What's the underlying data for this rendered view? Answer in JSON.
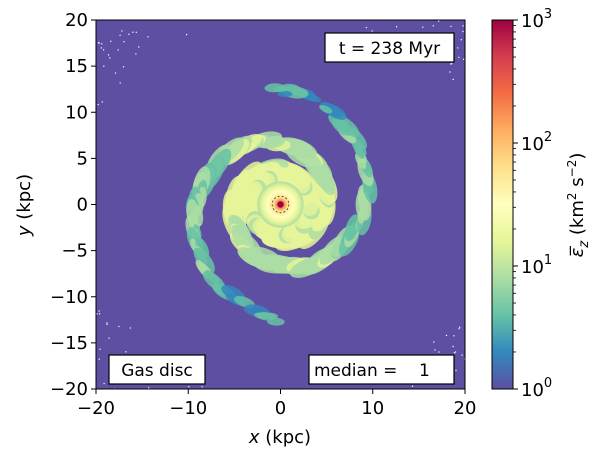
{
  "chart_data": {
    "type": "heatmap",
    "title": "",
    "xlabel": "x (kpc)",
    "ylabel": "y (kpc)",
    "xlim": [
      -20,
      20
    ],
    "ylim": [
      -20,
      20
    ],
    "x_ticks": [
      "−20",
      "−10",
      "0",
      "10",
      "20"
    ],
    "y_ticks": [
      "−20",
      "−15",
      "−10",
      "−5",
      "0",
      "5",
      "10",
      "15",
      "20"
    ],
    "x_tick_values": [
      -20,
      -10,
      0,
      10,
      20
    ],
    "y_tick_values": [
      -20,
      -15,
      -10,
      -5,
      0,
      5,
      10,
      15,
      20
    ],
    "colorbar": {
      "label": "ε̅_z (km² s⁻²)",
      "scale": "log",
      "range": [
        1,
        1000
      ],
      "ticks": [
        {
          "value": 1,
          "base": "10",
          "exp": "0"
        },
        {
          "value": 10,
          "base": "10",
          "exp": "1"
        },
        {
          "value": 100,
          "base": "10",
          "exp": "2"
        },
        {
          "value": 1000,
          "base": "10",
          "exp": "3"
        }
      ],
      "colormap": "Spectral_r",
      "colormap_stops": [
        "#5e4fa2",
        "#3288bd",
        "#66c2a5",
        "#abdda4",
        "#e6f598",
        "#ffffbf",
        "#fee08b",
        "#fdae61",
        "#f46d43",
        "#d53e4f",
        "#9e0142"
      ]
    },
    "annotations": {
      "time": "t = 238 Myr",
      "component": "Gas disc",
      "median": "median =    1"
    },
    "background_value": 1,
    "features": [
      {
        "kind": "core",
        "center": [
          0,
          0
        ],
        "radius_kpc": 2.5,
        "peak_value": 900
      },
      {
        "kind": "spiral-arms",
        "extent_kpc": [
          3,
          14
        ],
        "typical_value": 6
      }
    ]
  }
}
